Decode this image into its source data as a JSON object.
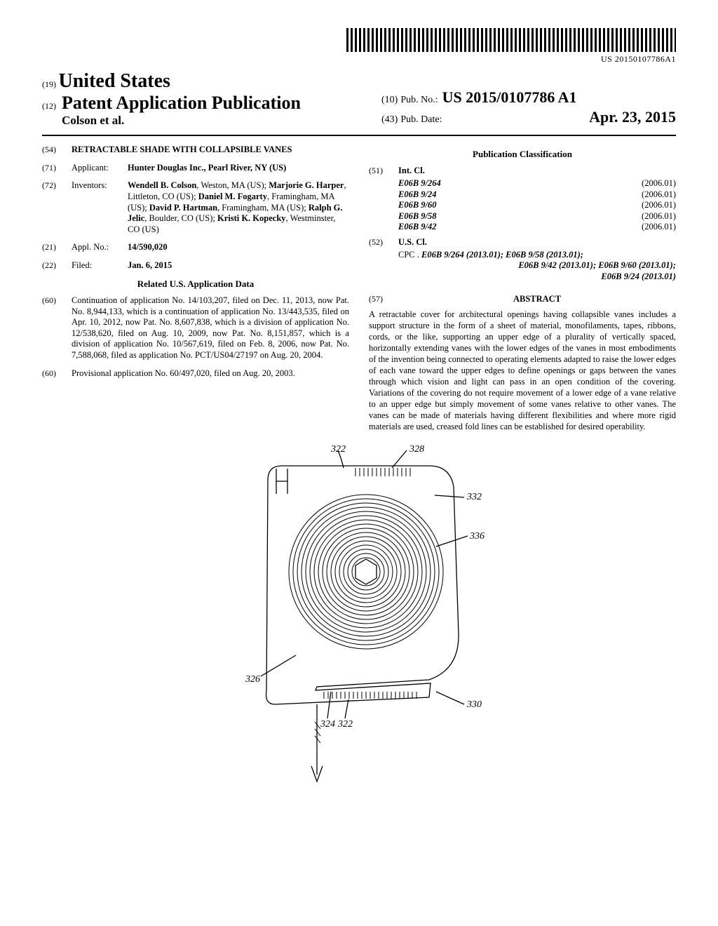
{
  "colors": {
    "ink": "#000000",
    "bg": "#ffffff"
  },
  "barcode_text": "US 20150107786A1",
  "header": {
    "code19": "(19)",
    "country": "United States",
    "code12": "(12)",
    "doc_type": "Patent Application Publication",
    "authors_line": "Colson et al.",
    "code10": "(10)",
    "pub_no_label": "Pub. No.:",
    "pub_no": "US 2015/0107786 A1",
    "code43": "(43)",
    "pub_date_label": "Pub. Date:",
    "pub_date": "Apr. 23, 2015"
  },
  "left": {
    "f54_code": "(54)",
    "f54_title": "RETRACTABLE SHADE WITH COLLAPSIBLE VANES",
    "f71_code": "(71)",
    "f71_label": "Applicant:",
    "f71_val": "Hunter Douglas Inc., Pearl River, NY (US)",
    "f72_code": "(72)",
    "f72_label": "Inventors:",
    "f72_val": "Wendell B. Colson, Weston, MA (US); Marjorie G. Harper, Littleton, CO (US); Daniel M. Fogarty, Framingham, MA (US); David P. Hartman, Framingham, MA (US); Ralph G. Jelic, Boulder, CO (US); Kristi K. Kopecky, Westminster, CO (US)",
    "f21_code": "(21)",
    "f21_label": "Appl. No.:",
    "f21_val": "14/590,020",
    "f22_code": "(22)",
    "f22_label": "Filed:",
    "f22_val": "Jan. 6, 2015",
    "related_heading": "Related U.S. Application Data",
    "f60a_code": "(60)",
    "f60a_val": "Continuation of application No. 14/103,207, filed on Dec. 11, 2013, now Pat. No. 8,944,133, which is a continuation of application No. 13/443,535, filed on Apr. 10, 2012, now Pat. No. 8,607,838, which is a division of application No. 12/538,620, filed on Aug. 10, 2009, now Pat. No. 8,151,857, which is a division of application No. 10/567,619, filed on Feb. 8, 2006, now Pat. No. 7,588,068, filed as application No. PCT/US04/27197 on Aug. 20, 2004.",
    "f60b_code": "(60)",
    "f60b_val": "Provisional application No. 60/497,020, filed on Aug. 20, 2003."
  },
  "right": {
    "pub_class_heading": "Publication Classification",
    "f51_code": "(51)",
    "f51_label": "Int. Cl.",
    "int_cl": [
      {
        "code": "E06B 9/264",
        "year": "(2006.01)"
      },
      {
        "code": "E06B 9/24",
        "year": "(2006.01)"
      },
      {
        "code": "E06B 9/60",
        "year": "(2006.01)"
      },
      {
        "code": "E06B 9/58",
        "year": "(2006.01)"
      },
      {
        "code": "E06B 9/42",
        "year": "(2006.01)"
      }
    ],
    "f52_code": "(52)",
    "f52_label": "U.S. Cl.",
    "cpc_prefix": "CPC .",
    "cpc_lines": [
      "E06B 9/264 (2013.01); E06B 9/58 (2013.01);",
      "E06B 9/42 (2013.01); E06B 9/60 (2013.01);",
      "E06B 9/24 (2013.01)"
    ],
    "f57_code": "(57)",
    "abstract_label": "ABSTRACT",
    "abstract": "A retractable cover for architectural openings having collapsible vanes includes a support structure in the form of a sheet of material, monofilaments, tapes, ribbons, cords, or the like, supporting an upper edge of a plurality of vertically spaced, horizontally extending vanes with the lower edges of the vanes in most embodiments of the invention being connected to operating elements adapted to raise the lower edges of each vane toward the upper edges to define openings or gaps between the vanes through which vision and light can pass in an open condition of the covering. Variations of the covering do not require movement of a lower edge of a vane relative to an upper edge but simply movement of some vanes relative to other vanes. The vanes can be made of materials having different flexibilities and where more rigid materials are used, creased fold lines can be established for desired operability."
  },
  "figure": {
    "labels": {
      "n322a": "322",
      "n328": "328",
      "n332": "332",
      "n336": "336",
      "n326": "326",
      "n324": "324",
      "n322b": "322",
      "n330": "330"
    },
    "style": {
      "stroke": "#000000",
      "stroke_width": 1.3,
      "label_font_size": 12,
      "label_font_style": "italic"
    }
  }
}
